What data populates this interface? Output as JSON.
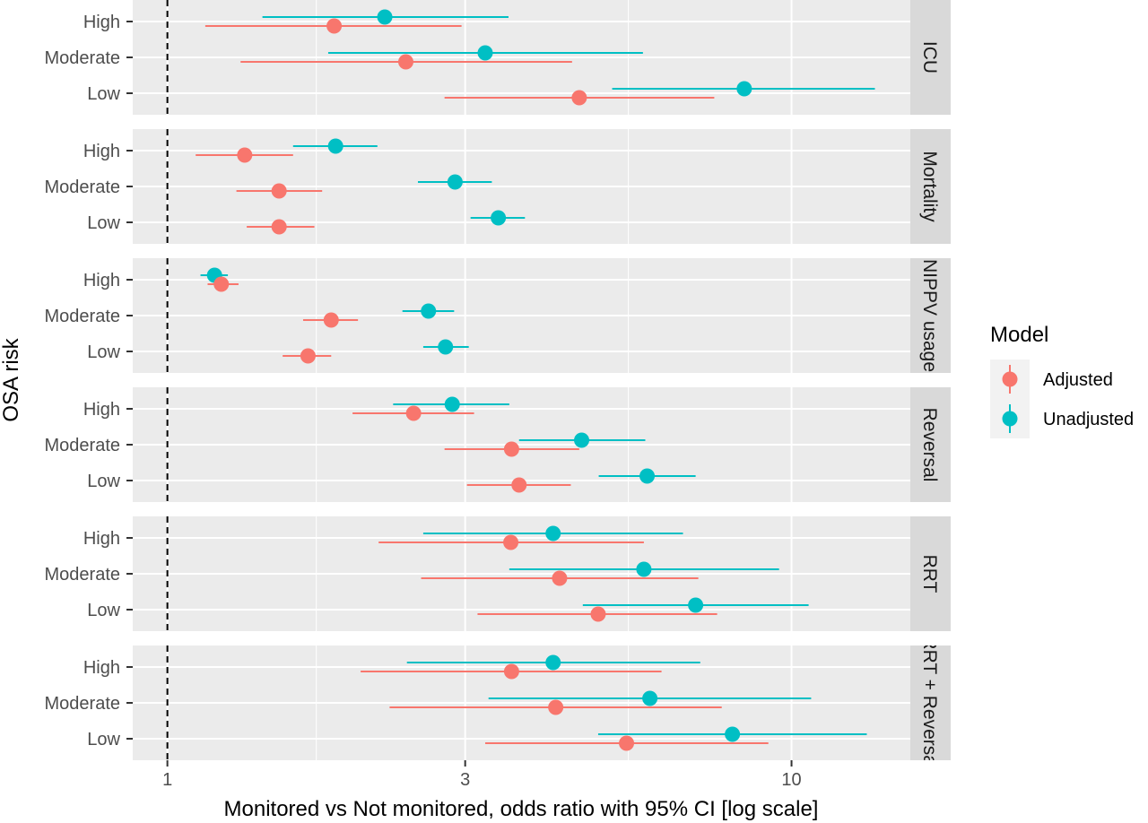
{
  "chart_data": {
    "type": "forest",
    "xlabel": "Monitored vs Not monitored, odds ratio with 95% CI [log scale]",
    "ylabel": "OSA risk",
    "x_scale": "log",
    "xlim": [
      0.88,
      15.5
    ],
    "x_ticks": [
      1,
      3,
      10
    ],
    "x_tick_labels": [
      "1",
      "3",
      "10"
    ],
    "reference_line": {
      "x": 1,
      "style": "dashed",
      "color": "#000000"
    },
    "grid": true,
    "categories": [
      "High",
      "Moderate",
      "Low"
    ],
    "legend": {
      "title": "Model",
      "position": "right",
      "entries": [
        {
          "name": "Adjusted",
          "color": "#F8766D"
        },
        {
          "name": "Unadjusted",
          "color": "#00BFC4"
        }
      ]
    },
    "panels": [
      {
        "label": "ICU",
        "rows": [
          {
            "risk": "High",
            "Unadjusted": {
              "or": 2.23,
              "lo": 1.42,
              "hi": 3.52
            },
            "Adjusted": {
              "or": 1.85,
              "lo": 1.15,
              "hi": 2.96
            }
          },
          {
            "risk": "Moderate",
            "Unadjusted": {
              "or": 3.23,
              "lo": 1.81,
              "hi": 5.78
            },
            "Adjusted": {
              "or": 2.41,
              "lo": 1.31,
              "hi": 4.45
            }
          },
          {
            "risk": "Low",
            "Unadjusted": {
              "or": 8.4,
              "lo": 5.16,
              "hi": 13.6
            },
            "Adjusted": {
              "or": 4.57,
              "lo": 2.78,
              "hi": 7.52
            }
          }
        ]
      },
      {
        "label": "Mortality",
        "rows": [
          {
            "risk": "High",
            "Unadjusted": {
              "or": 1.86,
              "lo": 1.59,
              "hi": 2.17
            },
            "Adjusted": {
              "or": 1.33,
              "lo": 1.11,
              "hi": 1.59
            }
          },
          {
            "risk": "Moderate",
            "Unadjusted": {
              "or": 2.89,
              "lo": 2.52,
              "hi": 3.31
            },
            "Adjusted": {
              "or": 1.51,
              "lo": 1.29,
              "hi": 1.77
            }
          },
          {
            "risk": "Low",
            "Unadjusted": {
              "or": 3.39,
              "lo": 3.06,
              "hi": 3.74
            },
            "Adjusted": {
              "or": 1.51,
              "lo": 1.34,
              "hi": 1.72
            }
          }
        ]
      },
      {
        "label": "NIPPV usage",
        "rows": [
          {
            "risk": "High",
            "Unadjusted": {
              "or": 1.19,
              "lo": 1.13,
              "hi": 1.25
            },
            "Adjusted": {
              "or": 1.22,
              "lo": 1.16,
              "hi": 1.3
            }
          },
          {
            "risk": "Moderate",
            "Unadjusted": {
              "or": 2.62,
              "lo": 2.38,
              "hi": 2.88
            },
            "Adjusted": {
              "or": 1.83,
              "lo": 1.65,
              "hi": 2.02
            }
          },
          {
            "risk": "Low",
            "Unadjusted": {
              "or": 2.79,
              "lo": 2.57,
              "hi": 3.04
            },
            "Adjusted": {
              "or": 1.68,
              "lo": 1.53,
              "hi": 1.83
            }
          }
        ]
      },
      {
        "label": "Reversal",
        "rows": [
          {
            "risk": "High",
            "Unadjusted": {
              "or": 2.86,
              "lo": 2.3,
              "hi": 3.53
            },
            "Adjusted": {
              "or": 2.48,
              "lo": 1.98,
              "hi": 3.1
            }
          },
          {
            "risk": "Moderate",
            "Unadjusted": {
              "or": 4.61,
              "lo": 3.66,
              "hi": 5.83
            },
            "Adjusted": {
              "or": 3.56,
              "lo": 2.78,
              "hi": 4.57
            }
          },
          {
            "risk": "Low",
            "Unadjusted": {
              "or": 5.87,
              "lo": 4.91,
              "hi": 7.02
            },
            "Adjusted": {
              "or": 3.66,
              "lo": 3.02,
              "hi": 4.43
            }
          }
        ]
      },
      {
        "label": "RRT",
        "rows": [
          {
            "risk": "High",
            "Unadjusted": {
              "or": 4.15,
              "lo": 2.57,
              "hi": 6.7
            },
            "Adjusted": {
              "or": 3.55,
              "lo": 2.18,
              "hi": 5.8
            }
          },
          {
            "risk": "Moderate",
            "Unadjusted": {
              "or": 5.8,
              "lo": 3.53,
              "hi": 9.55
            },
            "Adjusted": {
              "or": 4.25,
              "lo": 2.55,
              "hi": 7.09
            }
          },
          {
            "risk": "Low",
            "Unadjusted": {
              "or": 7.02,
              "lo": 4.63,
              "hi": 10.65
            },
            "Adjusted": {
              "or": 4.9,
              "lo": 3.14,
              "hi": 7.6
            }
          }
        ]
      },
      {
        "label": "RRT + Reversal",
        "rows": [
          {
            "risk": "High",
            "Unadjusted": {
              "or": 4.15,
              "lo": 2.42,
              "hi": 7.14
            },
            "Adjusted": {
              "or": 3.56,
              "lo": 2.04,
              "hi": 6.19
            }
          },
          {
            "risk": "Moderate",
            "Unadjusted": {
              "or": 5.93,
              "lo": 3.27,
              "hi": 10.75
            },
            "Adjusted": {
              "or": 4.19,
              "lo": 2.27,
              "hi": 7.73
            }
          },
          {
            "risk": "Low",
            "Unadjusted": {
              "or": 8.04,
              "lo": 4.9,
              "hi": 13.2
            },
            "Adjusted": {
              "or": 5.44,
              "lo": 3.23,
              "hi": 9.18
            }
          }
        ]
      }
    ]
  }
}
